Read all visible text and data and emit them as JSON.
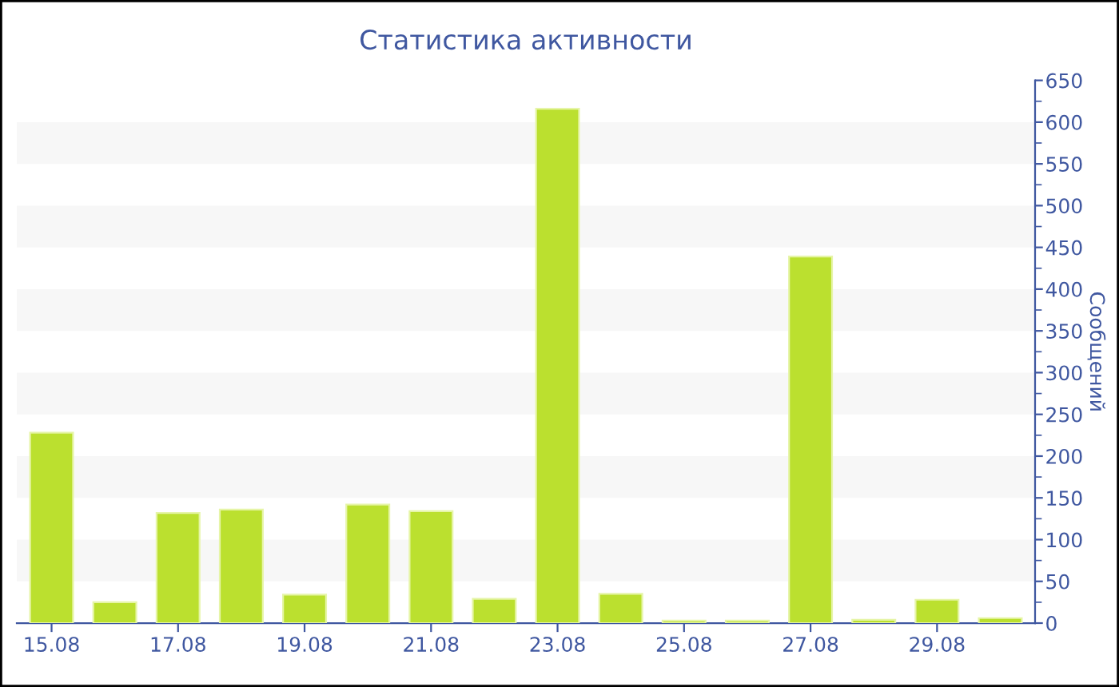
{
  "chart_data": {
    "type": "bar",
    "title": "Статистика активности",
    "ylabel": "Сообщений",
    "categories": [
      "15.08",
      null,
      "17.08",
      null,
      "19.08",
      null,
      "21.08",
      null,
      "23.08",
      null,
      "25.08",
      null,
      "27.08",
      null,
      "29.08",
      null
    ],
    "values": [
      228,
      25,
      132,
      136,
      34,
      142,
      134,
      29,
      616,
      35,
      3,
      3,
      439,
      4,
      28,
      6
    ],
    "color": "#bbe02f",
    "ylim": [
      0,
      650
    ],
    "yticks": [
      0,
      50,
      100,
      150,
      200,
      250,
      300,
      350,
      400,
      450,
      500,
      550,
      600,
      650
    ],
    "bands": [
      {
        "axis": "y",
        "from": 50,
        "to": 100,
        "color": "#f7f7f7"
      },
      {
        "axis": "y",
        "from": 150,
        "to": 200,
        "color": "#f7f7f7"
      },
      {
        "axis": "y",
        "from": 250,
        "to": 300,
        "color": "#f7f7f7"
      },
      {
        "axis": "y",
        "from": 350,
        "to": 400,
        "color": "#f7f7f7"
      },
      {
        "axis": "y",
        "from": 450,
        "to": 500,
        "color": "#f7f7f7"
      },
      {
        "axis": "y",
        "from": 550,
        "to": 600,
        "color": "#f7f7f7"
      }
    ],
    "grid": false,
    "legend": false
  }
}
